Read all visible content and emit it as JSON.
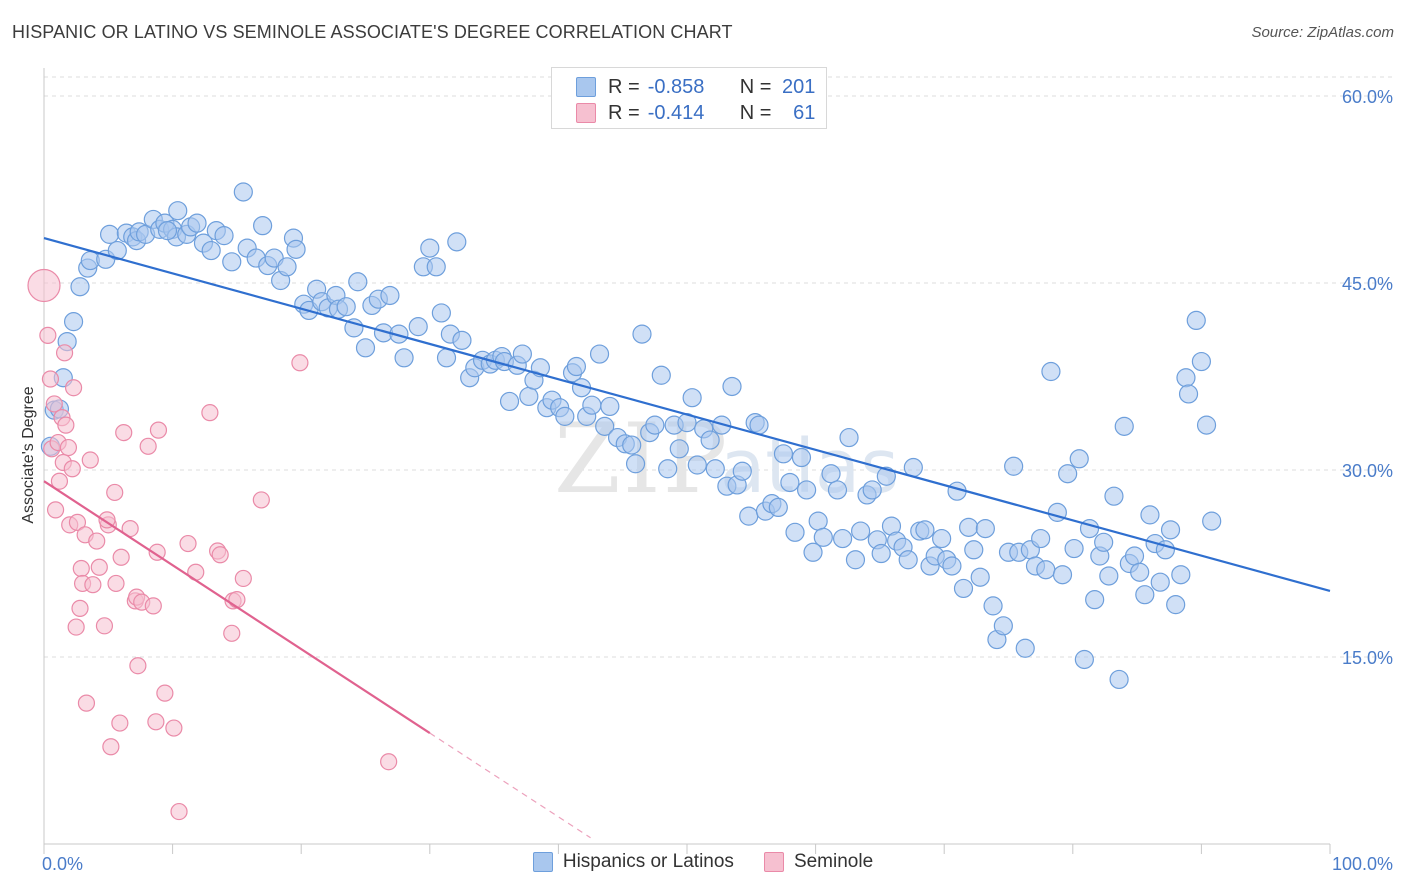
{
  "title": "HISPANIC OR LATINO VS SEMINOLE ASSOCIATE'S DEGREE CORRELATION CHART",
  "source": "Source: ZipAtlas.com",
  "watermark": "ZIPatlas",
  "colors": {
    "blue_fill": "#a9c7ee",
    "blue_stroke": "#6e9fdc",
    "blue_line": "#2f6fcf",
    "pink_fill": "#f6c0d0",
    "pink_stroke": "#ea8aa8",
    "pink_line": "#e0628f",
    "grid": "#dcdcdc",
    "axis_text": "#4a7cc9"
  },
  "legend_top": {
    "rows": [
      {
        "r_label": "R =",
        "r_value": "-0.858",
        "n_label": "N =",
        "n_value": "201"
      },
      {
        "r_label": "R =",
        "r_value": "-0.414",
        "n_label": "N =",
        "n_value": "61"
      }
    ]
  },
  "legend_bottom": {
    "items": [
      "Hispanics or Latinos",
      "Seminole"
    ]
  },
  "chart_data": {
    "type": "scatter",
    "title": "HISPANIC OR LATINO VS SEMINOLE ASSOCIATE'S DEGREE CORRELATION CHART",
    "xlabel": "",
    "ylabel": "Associate's Degree",
    "xlim": [
      0,
      100
    ],
    "ylim": [
      0,
      60
    ],
    "x_tick_labels": [
      "0.0%",
      "100.0%"
    ],
    "y_ticks": [
      15,
      30,
      45,
      60
    ],
    "y_tick_labels": [
      "15.0%",
      "30.0%",
      "45.0%",
      "60.0%"
    ],
    "grid": true,
    "legend_position": "top-center",
    "series": [
      {
        "name": "Hispanics or Latinos",
        "r": -0.858,
        "n": 201,
        "trend": {
          "x": [
            0,
            100
          ],
          "y": [
            48.6,
            20.3
          ]
        },
        "points": [
          [
            0.5,
            31.9
          ],
          [
            0.8,
            34.8
          ],
          [
            1.5,
            37.4
          ],
          [
            1.8,
            40.3
          ],
          [
            2.3,
            41.9
          ],
          [
            2.8,
            44.7
          ],
          [
            3.4,
            46.2
          ],
          [
            3.6,
            46.8
          ],
          [
            4.8,
            46.9
          ],
          [
            5.1,
            48.9
          ],
          [
            5.7,
            47.6
          ],
          [
            6.4,
            49
          ],
          [
            6.9,
            48.7
          ],
          [
            7.2,
            48.4
          ],
          [
            7.4,
            49.1
          ],
          [
            7.9,
            48.9
          ],
          [
            8.5,
            50.1
          ],
          [
            9,
            49.3
          ],
          [
            9.4,
            49.8
          ],
          [
            10,
            49.3
          ],
          [
            10.3,
            48.7
          ],
          [
            10.4,
            50.8
          ],
          [
            11.1,
            48.9
          ],
          [
            11.4,
            49.5
          ],
          [
            11.9,
            49.8
          ],
          [
            12.4,
            48.2
          ],
          [
            13,
            47.6
          ],
          [
            13.4,
            49.2
          ],
          [
            14,
            48.8
          ],
          [
            14.6,
            46.7
          ],
          [
            15.5,
            52.3
          ],
          [
            15.8,
            47.8
          ],
          [
            16.5,
            47
          ],
          [
            17,
            49.6
          ],
          [
            17.4,
            46.4
          ],
          [
            17.9,
            47
          ],
          [
            18.4,
            45.2
          ],
          [
            18.9,
            46.3
          ],
          [
            19.4,
            48.6
          ],
          [
            19.6,
            47.7
          ],
          [
            20.2,
            43.3
          ],
          [
            20.6,
            42.8
          ],
          [
            21.2,
            44.5
          ],
          [
            21.6,
            43.5
          ],
          [
            22.1,
            43
          ],
          [
            22.7,
            44
          ],
          [
            22.9,
            42.9
          ],
          [
            23.5,
            43.1
          ],
          [
            24.1,
            41.4
          ],
          [
            24.4,
            45.1
          ],
          [
            25,
            39.8
          ],
          [
            25.5,
            43.2
          ],
          [
            26,
            43.7
          ],
          [
            26.4,
            41
          ],
          [
            26.9,
            44
          ],
          [
            27.6,
            40.9
          ],
          [
            28,
            39
          ],
          [
            29.1,
            41.5
          ],
          [
            29.5,
            46.3
          ],
          [
            30,
            47.8
          ],
          [
            30.5,
            46.3
          ],
          [
            30.9,
            42.6
          ],
          [
            31.3,
            39
          ],
          [
            31.6,
            40.9
          ],
          [
            32.1,
            48.3
          ],
          [
            32.5,
            40.4
          ],
          [
            33.1,
            37.4
          ],
          [
            33.5,
            38.2
          ],
          [
            34.1,
            38.8
          ],
          [
            34.7,
            38.5
          ],
          [
            35.1,
            38.8
          ],
          [
            35.6,
            39.1
          ],
          [
            35.8,
            38.7
          ],
          [
            36.2,
            35.5
          ],
          [
            36.8,
            38.4
          ],
          [
            37.2,
            39.3
          ],
          [
            37.7,
            35.9
          ],
          [
            38.1,
            37.2
          ],
          [
            38.6,
            38.2
          ],
          [
            39.1,
            35
          ],
          [
            39.5,
            35.6
          ],
          [
            40.1,
            35
          ],
          [
            40.5,
            34.3
          ],
          [
            41.1,
            37.8
          ],
          [
            41.4,
            38.3
          ],
          [
            41.8,
            36.6
          ],
          [
            42.2,
            34.3
          ],
          [
            42.6,
            35.2
          ],
          [
            43.2,
            39.3
          ],
          [
            43.6,
            33.5
          ],
          [
            44,
            35.1
          ],
          [
            44.6,
            32.6
          ],
          [
            45.2,
            32.1
          ],
          [
            45.7,
            32
          ],
          [
            46,
            30.5
          ],
          [
            46.5,
            40.9
          ],
          [
            47.1,
            33
          ],
          [
            47.5,
            33.6
          ],
          [
            48,
            37.6
          ],
          [
            48.5,
            30.1
          ],
          [
            49,
            33.6
          ],
          [
            49.4,
            31.7
          ],
          [
            50,
            33.8
          ],
          [
            50.4,
            35.8
          ],
          [
            50.8,
            30.4
          ],
          [
            51.3,
            33.3
          ],
          [
            51.8,
            32.4
          ],
          [
            52.2,
            30.1
          ],
          [
            52.7,
            33.6
          ],
          [
            53.1,
            28.7
          ],
          [
            53.5,
            36.7
          ],
          [
            53.9,
            28.8
          ],
          [
            54.3,
            29.9
          ],
          [
            54.8,
            26.3
          ],
          [
            55.3,
            33.8
          ],
          [
            55.6,
            33.6
          ],
          [
            56.1,
            26.7
          ],
          [
            56.6,
            27.3
          ],
          [
            57.1,
            27
          ],
          [
            57.5,
            31.3
          ],
          [
            58,
            29
          ],
          [
            58.4,
            25
          ],
          [
            58.9,
            31
          ],
          [
            59.3,
            28.4
          ],
          [
            59.8,
            23.4
          ],
          [
            60.2,
            25.9
          ],
          [
            60.6,
            24.6
          ],
          [
            61.2,
            29.7
          ],
          [
            61.7,
            28.4
          ],
          [
            62.1,
            24.5
          ],
          [
            62.6,
            32.6
          ],
          [
            63.1,
            22.8
          ],
          [
            63.5,
            25.1
          ],
          [
            64,
            28
          ],
          [
            64.4,
            28.4
          ],
          [
            64.8,
            24.4
          ],
          [
            65.1,
            23.3
          ],
          [
            65.5,
            29.5
          ],
          [
            65.9,
            25.5
          ],
          [
            66.3,
            24.3
          ],
          [
            66.8,
            23.8
          ],
          [
            67.2,
            22.8
          ],
          [
            67.6,
            30.2
          ],
          [
            68.1,
            25.1
          ],
          [
            68.5,
            25.2
          ],
          [
            68.9,
            22.3
          ],
          [
            69.3,
            23.1
          ],
          [
            69.8,
            24.5
          ],
          [
            70.2,
            22.8
          ],
          [
            70.6,
            22.3
          ],
          [
            71,
            28.3
          ],
          [
            71.5,
            20.5
          ],
          [
            71.9,
            25.4
          ],
          [
            72.3,
            23.6
          ],
          [
            72.8,
            21.4
          ],
          [
            73.2,
            25.3
          ],
          [
            73.8,
            19.1
          ],
          [
            74.1,
            16.4
          ],
          [
            74.6,
            17.5
          ],
          [
            75,
            23.4
          ],
          [
            75.4,
            30.3
          ],
          [
            75.8,
            23.4
          ],
          [
            76.3,
            15.7
          ],
          [
            76.7,
            23.6
          ],
          [
            77.1,
            22.3
          ],
          [
            77.5,
            24.5
          ],
          [
            77.9,
            22
          ],
          [
            78.3,
            37.9
          ],
          [
            78.8,
            26.6
          ],
          [
            79.2,
            21.6
          ],
          [
            79.6,
            29.7
          ],
          [
            80.1,
            23.7
          ],
          [
            80.5,
            30.9
          ],
          [
            80.9,
            14.8
          ],
          [
            81.3,
            25.3
          ],
          [
            81.7,
            19.6
          ],
          [
            82.1,
            23.1
          ],
          [
            82.4,
            24.2
          ],
          [
            82.8,
            21.5
          ],
          [
            83.2,
            27.9
          ],
          [
            83.6,
            13.2
          ],
          [
            84,
            33.5
          ],
          [
            84.4,
            22.5
          ],
          [
            84.8,
            23.1
          ],
          [
            85.2,
            21.8
          ],
          [
            85.6,
            20
          ],
          [
            86,
            26.4
          ],
          [
            86.4,
            24.1
          ],
          [
            86.8,
            21
          ],
          [
            87.2,
            23.6
          ],
          [
            87.6,
            25.2
          ],
          [
            88,
            19.2
          ],
          [
            88.4,
            21.6
          ],
          [
            88.8,
            37.4
          ],
          [
            89,
            36.1
          ],
          [
            89.6,
            42
          ],
          [
            90,
            38.7
          ],
          [
            90.4,
            33.6
          ],
          [
            90.8,
            25.9
          ],
          [
            1.2,
            34.9
          ],
          [
            9.6,
            49.2
          ]
        ]
      },
      {
        "name": "Seminole",
        "r": -0.414,
        "n": 61,
        "trend": {
          "x": [
            0,
            30
          ],
          "y": [
            29.1,
            8.9
          ]
        },
        "trend_dashed": {
          "x": [
            30,
            42.5
          ],
          "y": [
            8.9,
            0.5
          ]
        },
        "points": [
          [
            0,
            44.8
          ],
          [
            0.3,
            40.8
          ],
          [
            0.5,
            37.3
          ],
          [
            0.6,
            31.7
          ],
          [
            0.8,
            35.3
          ],
          [
            0.9,
            26.8
          ],
          [
            1.1,
            32.2
          ],
          [
            1.2,
            29.1
          ],
          [
            1.4,
            34.2
          ],
          [
            1.5,
            30.6
          ],
          [
            1.6,
            39.4
          ],
          [
            1.7,
            33.6
          ],
          [
            1.9,
            31.8
          ],
          [
            2,
            25.6
          ],
          [
            2.2,
            30.1
          ],
          [
            2.3,
            36.6
          ],
          [
            2.5,
            17.4
          ],
          [
            2.6,
            25.8
          ],
          [
            2.8,
            18.9
          ],
          [
            2.9,
            22.1
          ],
          [
            3,
            20.9
          ],
          [
            3.2,
            24.8
          ],
          [
            3.3,
            11.3
          ],
          [
            3.6,
            30.8
          ],
          [
            3.8,
            20.8
          ],
          [
            4.1,
            24.3
          ],
          [
            4.3,
            22.2
          ],
          [
            4.7,
            17.5
          ],
          [
            5,
            25.6
          ],
          [
            5.2,
            7.8
          ],
          [
            5.5,
            28.2
          ],
          [
            5.6,
            20.9
          ],
          [
            5.9,
            9.7
          ],
          [
            6.2,
            33
          ],
          [
            6.7,
            25.3
          ],
          [
            7.1,
            19.5
          ],
          [
            7.2,
            19.8
          ],
          [
            7.3,
            14.3
          ],
          [
            7.6,
            19.4
          ],
          [
            8.1,
            31.9
          ],
          [
            8.5,
            19.1
          ],
          [
            8.7,
            9.8
          ],
          [
            8.8,
            23.4
          ],
          [
            8.9,
            33.2
          ],
          [
            9.4,
            12.1
          ],
          [
            10.1,
            9.3
          ],
          [
            10.5,
            2.6
          ],
          [
            11.2,
            24.1
          ],
          [
            11.8,
            21.8
          ],
          [
            12.9,
            34.6
          ],
          [
            13.5,
            23.5
          ],
          [
            13.7,
            23.2
          ],
          [
            14.6,
            16.9
          ],
          [
            14.7,
            19.5
          ],
          [
            15,
            19.6
          ],
          [
            15.5,
            21.3
          ],
          [
            16.9,
            27.6
          ],
          [
            19.9,
            38.6
          ],
          [
            26.8,
            6.6
          ],
          [
            4.9,
            26
          ],
          [
            6,
            23
          ]
        ]
      }
    ]
  }
}
